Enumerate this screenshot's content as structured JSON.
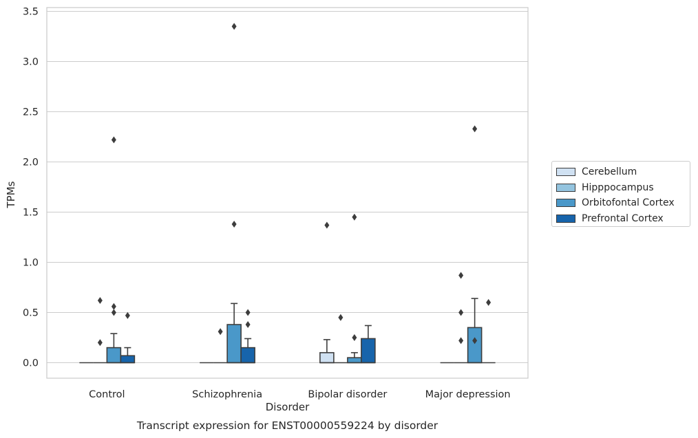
{
  "caption": "Transcript expression for ENST00000559224 by disorder",
  "chart_data": {
    "type": "box",
    "xlabel": "Disorder",
    "ylabel": "TPMs",
    "ylim": [
      -0.16,
      3.52
    ],
    "yticks": [
      0.0,
      0.5,
      1.0,
      1.5,
      2.0,
      2.5,
      3.0,
      3.5
    ],
    "ytick_labels": [
      "0.0",
      "0.5",
      "1.0",
      "1.5",
      "2.0",
      "2.5",
      "3.0",
      "3.5"
    ],
    "grid": "horizontal",
    "legend_position": "right",
    "categories": [
      "Control",
      "Schizophrenia",
      "Bipolar disorder",
      "Major depression"
    ],
    "series": [
      {
        "name": "Cerebellum",
        "color": "#d0e1f2",
        "boxes": [
          {
            "q1": 0,
            "median": 0,
            "q3": 0,
            "whisker_low": 0,
            "whisker_high": 0,
            "outliers": []
          },
          {
            "q1": 0,
            "median": 0,
            "q3": 0,
            "whisker_low": 0,
            "whisker_high": 0,
            "outliers": []
          },
          {
            "q1": 0,
            "median": 0,
            "q3": 0.1,
            "whisker_low": 0,
            "whisker_high": 0.23,
            "outliers": [
              1.37
            ]
          },
          {
            "q1": 0,
            "median": 0,
            "q3": 0,
            "whisker_low": 0,
            "whisker_high": 0,
            "outliers": []
          }
        ]
      },
      {
        "name": "Hipppocampus",
        "color": "#94c4df",
        "boxes": [
          {
            "q1": 0,
            "median": 0,
            "q3": 0,
            "whisker_low": 0,
            "whisker_high": 0,
            "outliers": [
              0.62,
              0.2
            ]
          },
          {
            "q1": 0,
            "median": 0,
            "q3": 0,
            "whisker_low": 0,
            "whisker_high": 0,
            "outliers": [
              0.31
            ]
          },
          {
            "q1": 0,
            "median": 0,
            "q3": 0,
            "whisker_low": 0,
            "whisker_high": 0,
            "outliers": [
              0.45
            ]
          },
          {
            "q1": 0,
            "median": 0,
            "q3": 0,
            "whisker_low": 0,
            "whisker_high": 0,
            "outliers": [
              0.87,
              0.5,
              0.22
            ]
          }
        ]
      },
      {
        "name": "Orbitofontal Cortex",
        "color": "#4a98c9",
        "boxes": [
          {
            "q1": 0,
            "median": 0,
            "q3": 0.15,
            "whisker_low": 0,
            "whisker_high": 0.29,
            "outliers": [
              2.22,
              0.56,
              0.5
            ]
          },
          {
            "q1": 0,
            "median": 0,
            "q3": 0.38,
            "whisker_low": 0,
            "whisker_high": 0.59,
            "outliers": [
              3.35,
              1.38
            ]
          },
          {
            "q1": 0,
            "median": 0,
            "q3": 0.05,
            "whisker_low": 0,
            "whisker_high": 0.1,
            "outliers": [
              1.45,
              0.25
            ]
          },
          {
            "q1": 0,
            "median": 0,
            "q3": 0.35,
            "whisker_low": 0,
            "whisker_high": 0.64,
            "outliers": [
              2.33,
              0.22
            ]
          }
        ]
      },
      {
        "name": "Prefrontal Cortex",
        "color": "#1764ab",
        "boxes": [
          {
            "q1": 0,
            "median": 0,
            "q3": 0.07,
            "whisker_low": 0,
            "whisker_high": 0.15,
            "outliers": [
              0.47
            ]
          },
          {
            "q1": 0,
            "median": 0,
            "q3": 0.15,
            "whisker_low": 0,
            "whisker_high": 0.24,
            "outliers": [
              0.5,
              0.38
            ]
          },
          {
            "q1": 0,
            "median": 0,
            "q3": 0.24,
            "whisker_low": 0,
            "whisker_high": 0.37,
            "outliers": []
          },
          {
            "q1": 0,
            "median": 0,
            "q3": 0,
            "whisker_low": 0,
            "whisker_high": 0,
            "outliers": [
              0.6
            ]
          }
        ]
      }
    ]
  }
}
